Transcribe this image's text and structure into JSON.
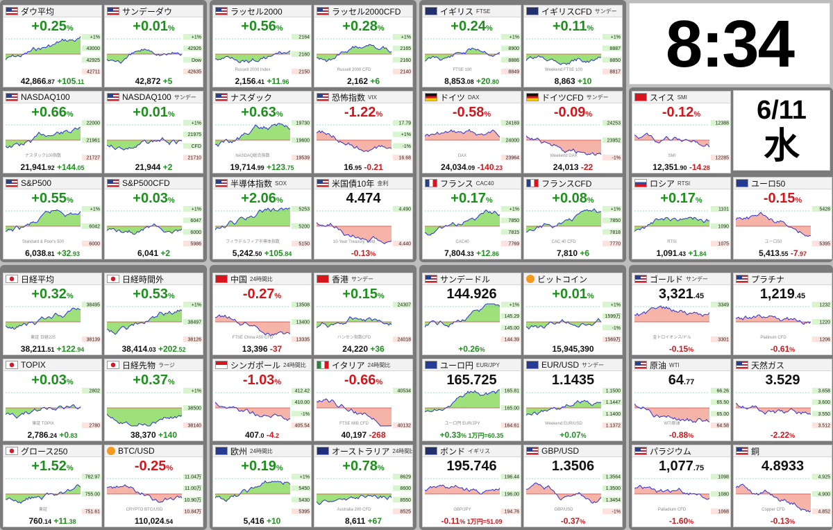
{
  "clock": {
    "time": "8:34",
    "date": "6/11",
    "weekday": "水"
  },
  "panels": [
    {
      "name": "ダウ平均",
      "sub": "",
      "flag": "us",
      "main": "+0.25",
      "main_unit": "%",
      "main_color": "pos",
      "left": "42,866",
      "left_dec": ".87",
      "chg": "+105",
      "chg_dec": ".11",
      "chg_color": "pos",
      "ticks": [
        "+1%",
        "43000",
        "42925",
        "42711"
      ],
      "watermark": "",
      "col": 0,
      "row": 0,
      "shape": 0
    },
    {
      "name": "サンデーダウ",
      "sub": "",
      "flag": "us",
      "main": "+0.01",
      "main_unit": "%",
      "main_color": "pos",
      "left": "42,872",
      "left_dec": "",
      "chg": "+5",
      "chg_dec": "",
      "chg_color": "pos",
      "ticks": [
        "+1%",
        "42926",
        "Dow",
        "42635"
      ],
      "watermark": "",
      "col": 1,
      "row": 0,
      "shape": 1
    },
    {
      "name": "ラッセル2000",
      "sub": "",
      "flag": "us",
      "main": "+0.56",
      "main_unit": "%",
      "main_color": "pos",
      "left": "2,156",
      "left_dec": ".41",
      "chg": "+11",
      "chg_dec": ".96",
      "chg_color": "pos",
      "ticks": [
        "2164",
        "2160",
        "2150"
      ],
      "watermark": "Russell 2000 Index",
      "col": 2,
      "row": 0,
      "shape": 2
    },
    {
      "name": "ラッセル2000CFD",
      "sub": "",
      "flag": "us",
      "main": "+0.28",
      "main_unit": "%",
      "main_color": "pos",
      "left": "2,162",
      "left_dec": "",
      "chg": "+6",
      "chg_dec": "",
      "chg_color": "pos",
      "ticks": [
        "+1%",
        "2165",
        "2160",
        "2140"
      ],
      "watermark": "Russell 2000 CFD",
      "col": 3,
      "row": 0,
      "shape": 3
    },
    {
      "name": "イギリス",
      "sub": "FTSE",
      "flag": "uk",
      "main": "+0.24",
      "main_unit": "%",
      "main_color": "pos",
      "left": "8,853",
      "left_dec": ".08",
      "chg": "+20",
      "chg_dec": ".80",
      "chg_color": "pos",
      "ticks": [
        "+1%",
        "8900",
        "8886",
        "8849"
      ],
      "watermark": "FTSE 100",
      "col": 4,
      "row": 0,
      "shape": 4
    },
    {
      "name": "イギリスCFD",
      "sub": "サンデー",
      "flag": "uk",
      "main": "+0.11",
      "main_unit": "%",
      "main_color": "pos",
      "left": "8,863",
      "left_dec": "",
      "chg": "+10",
      "chg_dec": "",
      "chg_color": "pos",
      "ticks": [
        "+1%",
        "8887",
        "8850",
        "8817"
      ],
      "watermark": "Weekend FTSE 100",
      "col": 5,
      "row": 0,
      "shape": 5
    },
    {
      "name": "NASDAQ100",
      "sub": "",
      "flag": "us",
      "main": "+0.66",
      "main_unit": "%",
      "main_color": "pos",
      "left": "21,941",
      "left_dec": ".92",
      "chg": "+144",
      "chg_dec": ".05",
      "chg_color": "pos",
      "ticks": [
        "22000",
        "21961",
        "21727"
      ],
      "watermark": "ナスダック100指数",
      "col": 0,
      "row": 1,
      "shape": 6
    },
    {
      "name": "NASDAQ100",
      "sub": "サンデー",
      "flag": "us",
      "main": "+0.01",
      "main_unit": "%",
      "main_color": "pos",
      "left": "21,944",
      "left_dec": "",
      "chg": "+2",
      "chg_dec": "",
      "chg_color": "pos",
      "ticks": [
        "+1%",
        "21975",
        "CFD",
        "21710"
      ],
      "watermark": "",
      "col": 1,
      "row": 1,
      "shape": 7
    },
    {
      "name": "ナスダック",
      "sub": "",
      "flag": "us",
      "main": "+0.63",
      "main_unit": "%",
      "main_color": "pos",
      "left": "19,714",
      "left_dec": ".99",
      "chg": "+123",
      "chg_dec": ".75",
      "chg_color": "pos",
      "ticks": [
        "19730",
        "19600",
        "19539"
      ],
      "watermark": "NASDAQ総合指数",
      "col": 2,
      "row": 1,
      "shape": 8
    },
    {
      "name": "恐怖指数",
      "sub": "VIX",
      "flag": "us",
      "main": "-1.22",
      "main_unit": "%",
      "main_color": "neg",
      "left": "16",
      "left_dec": ".95",
      "chg": "-0.21",
      "chg_dec": "",
      "chg_color": "neg",
      "ticks": [
        "17.79",
        "+1%",
        "-1%",
        "16.68"
      ],
      "watermark": "",
      "col": 3,
      "row": 1,
      "shape": 9
    },
    {
      "name": "ドイツ",
      "sub": "DAX",
      "flag": "de",
      "main": "-0.58",
      "main_unit": "%",
      "main_color": "neg",
      "left": "24,034",
      "left_dec": ".09",
      "chg": "-140",
      "chg_dec": ".23",
      "chg_color": "neg",
      "ticks": [
        "24169",
        "24000",
        "23964"
      ],
      "watermark": "DAX",
      "col": 4,
      "row": 1,
      "shape": 10
    },
    {
      "name": "ドイツCFD",
      "sub": "サンデー",
      "flag": "de",
      "main": "-0.09",
      "main_unit": "%",
      "main_color": "neg",
      "left": "24,013",
      "left_dec": "",
      "chg": "-22",
      "chg_dec": "",
      "chg_color": "neg",
      "ticks": [
        "24253",
        "23952",
        "-1%"
      ],
      "watermark": "Weekend DAX",
      "col": 5,
      "row": 1,
      "shape": 11
    },
    {
      "name": "スイス",
      "sub": "SMI",
      "flag": "ch",
      "main": "-0.12",
      "main_unit": "%",
      "main_color": "neg",
      "left": "12,351",
      "left_dec": ".90",
      "chg": "-14",
      "chg_dec": ".28",
      "chg_color": "neg",
      "ticks": [
        "12388",
        "12285"
      ],
      "watermark": "SMI",
      "col": 6,
      "row": 1,
      "shape": 12
    },
    {
      "name": "S&P500",
      "sub": "",
      "flag": "us",
      "main": "+0.55",
      "main_unit": "%",
      "main_color": "pos",
      "left": "6,038",
      "left_dec": ".81",
      "chg": "+32",
      "chg_dec": ".93",
      "chg_color": "pos",
      "ticks": [
        "+1%",
        "6042",
        "6000"
      ],
      "watermark": "Standard & Poor's 500",
      "col": 0,
      "row": 2,
      "shape": 13
    },
    {
      "name": "S&P500CFD",
      "sub": "",
      "flag": "us",
      "main": "+0.03",
      "main_unit": "%",
      "main_color": "pos",
      "left": "6,041",
      "left_dec": "",
      "chg": "+2",
      "chg_dec": "",
      "chg_color": "pos",
      "ticks": [
        "+1%",
        "6047",
        "6000",
        "5986"
      ],
      "watermark": "",
      "col": 1,
      "row": 2,
      "shape": 14
    },
    {
      "name": "半導体指数",
      "sub": "SOX",
      "flag": "us",
      "main": "+2.06",
      "main_unit": "%",
      "main_color": "pos",
      "left": "5,242",
      "left_dec": ".50",
      "chg": "+105",
      "chg_dec": ".84",
      "chg_color": "pos",
      "ticks": [
        "5253",
        "5200",
        "5150"
      ],
      "watermark": "フィラデルフィア半導体指数",
      "col": 2,
      "row": 2,
      "shape": 15
    },
    {
      "name": "米国債10年",
      "sub": "金利",
      "flag": "us",
      "main": "4.474",
      "main_unit": "",
      "main_color": "blk",
      "left": "",
      "left_dec": "",
      "chg": "-0.13",
      "chg_dec": "%",
      "chg_color": "neg",
      "ticks": [
        "4.490",
        "4.440"
      ],
      "watermark": "10-Year Treasury Yield",
      "col": 3,
      "row": 2,
      "shape": 16
    },
    {
      "name": "フランス",
      "sub": "CAC40",
      "flag": "fr",
      "main": "+0.17",
      "main_unit": "%",
      "main_color": "pos",
      "left": "7,804",
      "left_dec": ".33",
      "chg": "+12",
      "chg_dec": ".86",
      "chg_color": "pos",
      "ticks": [
        "+1%",
        "7850",
        "7815",
        "7769"
      ],
      "watermark": "CAC40",
      "col": 4,
      "row": 2,
      "shape": 17
    },
    {
      "name": "フランスCFD",
      "sub": "",
      "flag": "fr",
      "main": "+0.08",
      "main_unit": "%",
      "main_color": "pos",
      "left": "7,810",
      "left_dec": "",
      "chg": "+6",
      "chg_dec": "",
      "chg_color": "pos",
      "ticks": [
        "+1%",
        "7850",
        "7818",
        "7770"
      ],
      "watermark": "CAC 40 CFD",
      "col": 5,
      "row": 2,
      "shape": 18
    },
    {
      "name": "ロシア",
      "sub": "RTSI",
      "flag": "ru",
      "main": "+0.17",
      "main_unit": "%",
      "main_color": "pos",
      "left": "1,091",
      "left_dec": ".43",
      "chg": "+1",
      "chg_dec": ".84",
      "chg_color": "pos",
      "ticks": [
        "1101",
        "1090",
        "1075"
      ],
      "watermark": "RTSI",
      "col": 6,
      "row": 2,
      "shape": 19
    },
    {
      "name": "ユーロ50",
      "sub": "",
      "flag": "eu",
      "main": "-0.15",
      "main_unit": "%",
      "main_color": "neg",
      "left": "5,413",
      "left_dec": ".55",
      "chg": "-7",
      "chg_dec": ".97",
      "chg_color": "neg",
      "ticks": [
        "5428",
        "5395"
      ],
      "watermark": "ユーロ50",
      "col": 7,
      "row": 2,
      "shape": 20
    },
    {
      "name": "日経平均",
      "sub": "",
      "flag": "jp",
      "main": "+0.32",
      "main_unit": "%",
      "main_color": "pos",
      "left": "38,211",
      "left_dec": ".51",
      "chg": "+122",
      "chg_dec": ".94",
      "chg_color": "pos",
      "ticks": [
        "38495",
        "38139"
      ],
      "watermark": "東証 日経225",
      "col": 0,
      "row": 3,
      "shape": 21
    },
    {
      "name": "日経時間外",
      "sub": "",
      "flag": "jp",
      "main": "+0.53",
      "main_unit": "%",
      "main_color": "pos",
      "left": "38,414",
      "left_dec": ".03",
      "chg": "+202",
      "chg_dec": ".52",
      "chg_color": "pos",
      "ticks": [
        "+1%",
        "38497",
        "38126"
      ],
      "watermark": "",
      "col": 1,
      "row": 3,
      "shape": 22
    },
    {
      "name": "中国",
      "sub": "24時間比",
      "flag": "cn",
      "main": "-0.27",
      "main_unit": "%",
      "main_color": "neg",
      "left": "13,396",
      "left_dec": "",
      "chg": "-37",
      "chg_dec": "",
      "chg_color": "neg",
      "ticks": [
        "13508",
        "13400",
        "13335"
      ],
      "watermark": "FTSE China A50 CFD",
      "col": 2,
      "row": 3,
      "shape": 23
    },
    {
      "name": "香港",
      "sub": "サンデー",
      "flag": "hk",
      "main": "+0.15",
      "main_unit": "%",
      "main_color": "pos",
      "left": "24,220",
      "left_dec": "",
      "chg": "+36",
      "chg_dec": "",
      "chg_color": "pos",
      "ticks": [
        "24307",
        "24018"
      ],
      "watermark": "ハンセン指数CFD",
      "col": 3,
      "row": 3,
      "shape": 24
    },
    {
      "name": "サンデードル",
      "sub": "",
      "flag": "us",
      "main": "144.926",
      "main_unit": "",
      "main_color": "blk",
      "left": "",
      "left_dec": "",
      "chg": "+0.26",
      "chg_dec": "%",
      "chg_color": "pos",
      "ticks": [
        "+1%",
        "145.29",
        "145.00",
        "144.39"
      ],
      "watermark": "",
      "col": 4,
      "row": 3,
      "shape": 25
    },
    {
      "name": "ビットコイン",
      "sub": "",
      "flag": "btc",
      "main": "+0.01",
      "main_unit": "%",
      "main_color": "pos",
      "left": "15,945,390",
      "left_dec": "",
      "chg": "",
      "chg_dec": "",
      "chg_color": "blk",
      "ticks": [
        "+1%",
        "1599万",
        "-1%",
        "1569万"
      ],
      "watermark": "",
      "col": 5,
      "row": 3,
      "shape": 26
    },
    {
      "name": "ゴールド",
      "sub": "サンデー",
      "flag": "us",
      "main": "3,321",
      "main_unit": ".45",
      "main_color": "blk",
      "left": "",
      "left_dec": "",
      "chg": "-0.15",
      "chg_dec": "%",
      "chg_color": "neg",
      "ticks": [
        "3349",
        "3301"
      ],
      "watermark": "金トロイオンス/ドル",
      "col": 6,
      "row": 3,
      "shape": 27
    },
    {
      "name": "プラチナ",
      "sub": "",
      "flag": "us",
      "main": "1,219",
      "main_unit": ".45",
      "main_color": "blk",
      "left": "",
      "left_dec": "",
      "chg": "-0.61",
      "chg_dec": "%",
      "chg_color": "neg",
      "ticks": [
        "1232",
        "1220",
        "1206"
      ],
      "watermark": "Platinum CFD",
      "col": 7,
      "row": 3,
      "shape": 28
    },
    {
      "name": "TOPIX",
      "sub": "",
      "flag": "jp",
      "main": "+0.03",
      "main_unit": "%",
      "main_color": "pos",
      "left": "2,786",
      "left_dec": ".24",
      "chg": "+0",
      "chg_dec": ".83",
      "chg_color": "pos",
      "ticks": [
        "2802",
        "2780"
      ],
      "watermark": "東証 TOPIX",
      "col": 0,
      "row": 4,
      "shape": 29
    },
    {
      "name": "日経先物",
      "sub": "ラージ",
      "flag": "jp",
      "main": "+0.37",
      "main_unit": "%",
      "main_color": "pos",
      "left": "38,370",
      "left_dec": "",
      "chg": "+140",
      "chg_dec": "",
      "chg_color": "pos",
      "ticks": [
        "+1%",
        "38500",
        "38140"
      ],
      "watermark": "",
      "col": 1,
      "row": 4,
      "shape": 30
    },
    {
      "name": "シンガポール",
      "sub": "24時間比",
      "flag": "sg",
      "main": "-1.03",
      "main_unit": "%",
      "main_color": "neg",
      "left": "407",
      "left_dec": ".0",
      "chg": "-4",
      "chg_dec": ".2",
      "chg_color": "neg",
      "ticks": [
        "412.42",
        "410.00",
        "-1%",
        "405.54"
      ],
      "watermark": "",
      "col": 2,
      "row": 4,
      "shape": 31
    },
    {
      "name": "イタリア",
      "sub": "24時間比",
      "flag": "it",
      "main": "-0.66",
      "main_unit": "%",
      "main_color": "neg",
      "left": "40,197",
      "left_dec": "",
      "chg": "-268",
      "chg_dec": "",
      "chg_color": "neg",
      "ticks": [
        "40534",
        "40132"
      ],
      "watermark": "FTSE MIB CFD",
      "col": 3,
      "row": 4,
      "shape": 32
    },
    {
      "name": "ユーロ円",
      "sub": "EUR/JPY",
      "flag": "eu",
      "main": "165.725",
      "main_unit": "",
      "main_color": "blk",
      "left": "",
      "left_dec": "",
      "chg": "+0.33",
      "chg_dec": "% 1万円=60.35",
      "chg_color": "pos",
      "ticks": [
        "165.81",
        "165.00",
        "164.61"
      ],
      "watermark": "ユーロ円 EUR/JPY",
      "col": 4,
      "row": 4,
      "shape": 33
    },
    {
      "name": "EUR/USD",
      "sub": "サンデー",
      "flag": "eu",
      "main": "1.1435",
      "main_unit": "",
      "main_color": "blk",
      "left": "",
      "left_dec": "",
      "chg": "+0.07",
      "chg_dec": "%",
      "chg_color": "pos",
      "ticks": [
        "1.1500",
        "1.1447",
        "1.1400",
        "1.1372"
      ],
      "watermark": "Weekend EUR/USD",
      "col": 5,
      "row": 4,
      "shape": 34
    },
    {
      "name": "原油",
      "sub": "WTI",
      "flag": "us",
      "main": "64",
      "main_unit": ".77",
      "main_color": "blk",
      "left": "",
      "left_dec": "",
      "chg": "-0.88",
      "chg_dec": "%",
      "chg_color": "neg",
      "ticks": [
        "66.26",
        "65.50",
        "65.00",
        "64.58"
      ],
      "watermark": "WTI原油",
      "col": 6,
      "row": 4,
      "shape": 35
    },
    {
      "name": "天然ガス",
      "sub": "",
      "flag": "us",
      "main": "3.529",
      "main_unit": "",
      "main_color": "blk",
      "left": "",
      "left_dec": "",
      "chg": "-2.22",
      "chg_dec": "%",
      "chg_color": "neg",
      "ticks": [
        "3.658",
        "3.600",
        "3.550",
        "3.512"
      ],
      "watermark": "",
      "col": 7,
      "row": 4,
      "shape": 36
    },
    {
      "name": "グロース250",
      "sub": "",
      "flag": "jp",
      "main": "+1.52",
      "main_unit": "%",
      "main_color": "pos",
      "left": "760",
      "left_dec": ".14",
      "chg": "+11",
      "chg_dec": ".38",
      "chg_color": "pos",
      "ticks": [
        "762.97",
        "755.00",
        "751.61"
      ],
      "watermark": "東証",
      "col": 0,
      "row": 5,
      "shape": 37
    },
    {
      "name": "BTC/USD",
      "sub": "",
      "flag": "btc",
      "main": "-0.25",
      "main_unit": "%",
      "main_color": "neg",
      "left": "110,024",
      "left_dec": ".54",
      "chg": "",
      "chg_dec": "",
      "chg_color": "blk",
      "ticks": [
        "11.04万",
        "11.00万",
        "10.90万",
        "10.84万"
      ],
      "watermark": "CRYPTO BTC/USD",
      "col": 1,
      "row": 5,
      "shape": 38
    },
    {
      "name": "欧州",
      "sub": "24時間比",
      "flag": "eu",
      "main": "+0.19",
      "main_unit": "%",
      "main_color": "pos",
      "left": "5,416",
      "left_dec": "",
      "chg": "+10",
      "chg_dec": "",
      "chg_color": "pos",
      "ticks": [
        "+1%",
        "5450",
        "5430",
        "5395"
      ],
      "watermark": "",
      "col": 2,
      "row": 5,
      "shape": 39
    },
    {
      "name": "オーストラリア",
      "sub": "24時間比",
      "flag": "au",
      "main": "+0.78",
      "main_unit": "%",
      "main_color": "pos",
      "left": "8,611",
      "left_dec": "",
      "chg": "+67",
      "chg_dec": "",
      "chg_color": "pos",
      "ticks": [
        "8629",
        "8600",
        "8550",
        "8525"
      ],
      "watermark": "Australia 200 CFD",
      "col": 3,
      "row": 5,
      "shape": 40
    },
    {
      "name": "ボンド",
      "sub": "イギリス",
      "flag": "uk",
      "main": "195.746",
      "main_unit": "",
      "main_color": "blk",
      "left": "",
      "left_dec": "",
      "chg": "-0.11",
      "chg_dec": "% 1万円=51.09",
      "chg_color": "neg",
      "ticks": [
        "196.44",
        "196.00",
        "194.76"
      ],
      "watermark": "GBP/JPY",
      "col": 4,
      "row": 5,
      "shape": 41
    },
    {
      "name": "GBP/USD",
      "sub": "",
      "flag": "us",
      "main": "1.3506",
      "main_unit": "",
      "main_color": "blk",
      "left": "",
      "left_dec": "",
      "chg": "-0.37",
      "chg_dec": "%",
      "chg_color": "neg",
      "ticks": [
        "1.3564",
        "1.3500",
        "1.3454",
        "-1%"
      ],
      "watermark": "GBP/USD",
      "col": 5,
      "row": 5,
      "shape": 42
    },
    {
      "name": "パラジウム",
      "sub": "",
      "flag": "us",
      "main": "1,077",
      "main_unit": ".75",
      "main_color": "blk",
      "left": "",
      "left_dec": "",
      "chg": "-1.60",
      "chg_dec": "%",
      "chg_color": "neg",
      "ticks": [
        "1098",
        "1080",
        "1068"
      ],
      "watermark": "Palladium CFD",
      "col": 6,
      "row": 5,
      "shape": 43
    },
    {
      "name": "銅",
      "sub": "",
      "flag": "us",
      "main": "4.8933",
      "main_unit": "",
      "main_color": "blk",
      "left": "",
      "left_dec": "",
      "chg": "-0.13",
      "chg_dec": "%",
      "chg_color": "neg",
      "ticks": [
        "4.925",
        "4.900",
        "4.852"
      ],
      "watermark": "Copper CFD",
      "col": 7,
      "row": 5,
      "shape": 44
    }
  ],
  "colors": {
    "up_fill": "#9ee07a",
    "down_fill": "#f6b3a8",
    "line": "#2b2fd6",
    "pos_text": "#1e8f1e",
    "neg_text": "#d4151b",
    "tick_pos_bg": "#d9f5cf",
    "tick_neg_bg": "#fde2dd"
  }
}
